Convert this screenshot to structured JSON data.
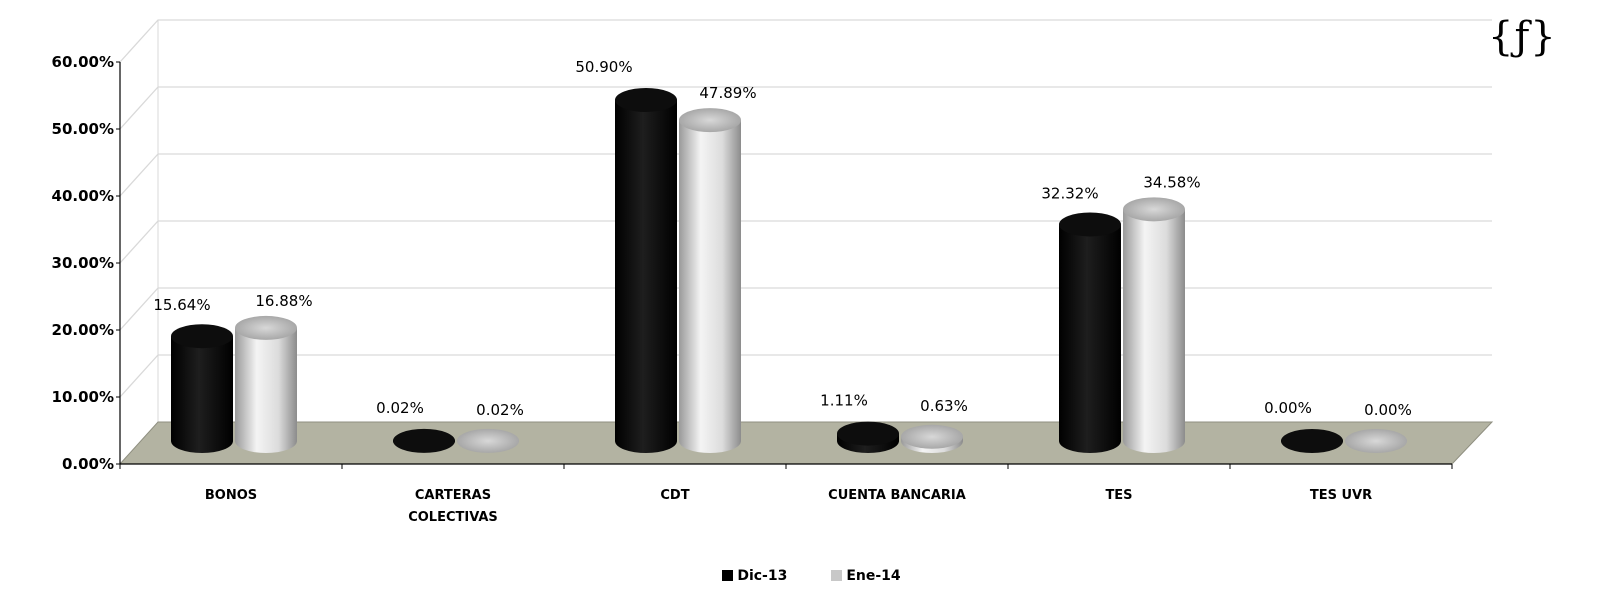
{
  "corner_mark": "{ƒ}",
  "chart_data": {
    "type": "bar",
    "style": "3d-cylinder",
    "categories": [
      [
        "BONOS"
      ],
      [
        "CARTERAS",
        "COLECTIVAS"
      ],
      [
        "CDT"
      ],
      [
        "CUENTA BANCARIA"
      ],
      [
        "TES"
      ],
      [
        "TES UVR"
      ]
    ],
    "series": [
      {
        "name": "Dic-13",
        "color": "#000000",
        "values": [
          15.64,
          0.02,
          50.9,
          1.11,
          32.32,
          0.0
        ],
        "labels": [
          "15.64%",
          "0.02%",
          "50.90%",
          "1.11%",
          "32.32%",
          "0.00%"
        ]
      },
      {
        "name": "Ene-14",
        "color": "#c8c8c8",
        "values": [
          16.88,
          0.02,
          47.89,
          0.63,
          34.58,
          0.0
        ],
        "labels": [
          "16.88%",
          "0.02%",
          "47.89%",
          "0.63%",
          "34.58%",
          "0.00%"
        ]
      }
    ],
    "yticks": [
      "0.00%",
      "10.00%",
      "20.00%",
      "30.00%",
      "40.00%",
      "50.00%",
      "60.00%"
    ],
    "ylim": [
      0,
      60
    ],
    "grid": true,
    "floor_color": "#b3b3a2",
    "legend_position": "bottom"
  }
}
